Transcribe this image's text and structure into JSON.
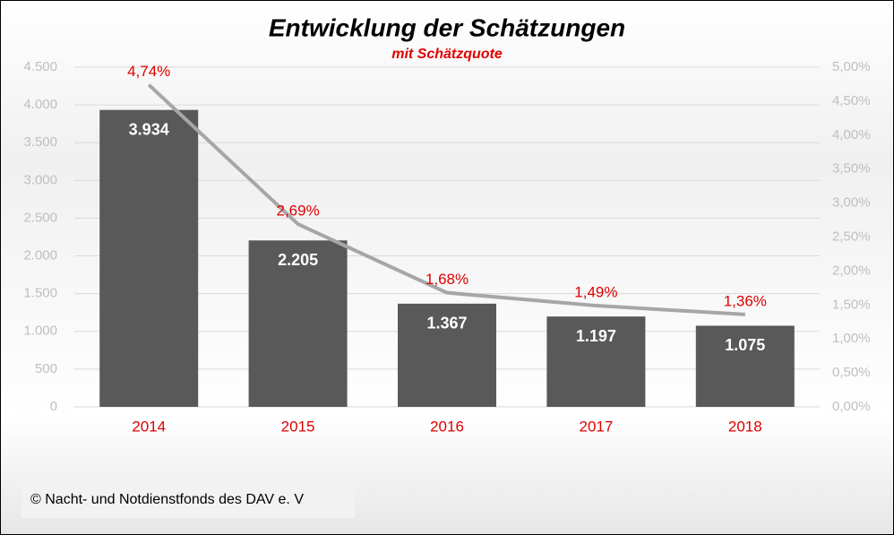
{
  "chart_data": {
    "type": "combo",
    "title": "Entwicklung der Schätzungen",
    "subtitle": "mit Schätzquote",
    "categories": [
      "2014",
      "2015",
      "2016",
      "2017",
      "2018"
    ],
    "series": [
      {
        "type": "bar",
        "color": "#595959",
        "values": [
          3934,
          2205,
          1367,
          1197,
          1075
        ],
        "value_labels": [
          "3.934",
          "2.205",
          "1.367",
          "1.197",
          "1.075"
        ]
      },
      {
        "type": "line",
        "axis": "y2",
        "color": "#a6a6a6",
        "values": [
          4.74,
          2.69,
          1.68,
          1.49,
          1.36
        ],
        "value_labels": [
          "4,74%",
          "2,69%",
          "1,68%",
          "1,49%",
          "1,36%"
        ]
      }
    ],
    "ylim": [
      0,
      4500
    ],
    "yticks": [
      0,
      {
        "value": 500,
        "label": "500"
      },
      {
        "value": 1000,
        "label": "1.000"
      },
      {
        "value": 1500,
        "label": "1.500"
      },
      {
        "value": 2000,
        "label": "2.000"
      },
      {
        "value": 2500,
        "label": "2.500"
      },
      {
        "value": 3000,
        "label": "3.000"
      },
      {
        "value": 3500,
        "label": "3.500"
      },
      {
        "value": 4000,
        "label": "4.000"
      },
      {
        "value": 4500,
        "label": "4.500"
      }
    ],
    "y2lim": [
      0,
      5
    ],
    "y2ticks": [
      {
        "value": 0,
        "label": "0,00%"
      },
      {
        "value": 0.5,
        "label": "0,50%"
      },
      {
        "value": 1,
        "label": "1,00%"
      },
      {
        "value": 1.5,
        "label": "1,50%"
      },
      {
        "value": 2,
        "label": "2,00%"
      },
      {
        "value": 2.5,
        "label": "2,50%"
      },
      {
        "value": 3,
        "label": "3,00%"
      },
      {
        "value": 3.5,
        "label": "3,50%"
      },
      {
        "value": 4,
        "label": "4,00%"
      },
      {
        "value": 4.5,
        "label": "4,50%"
      },
      {
        "value": 5,
        "label": "5,00%"
      }
    ],
    "grid": true,
    "footer": "© Nacht- und Notdienstfonds des DAV e. V"
  }
}
